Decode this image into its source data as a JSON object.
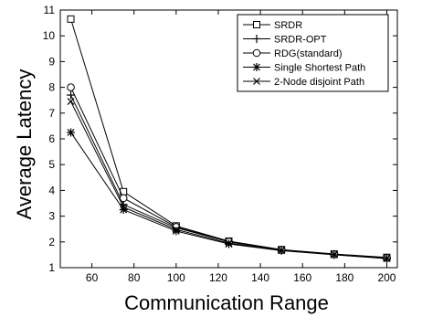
{
  "chart_data": {
    "type": "line",
    "title": "",
    "xlabel": "Communication Range",
    "ylabel": "Average Latency",
    "x": [
      50,
      75,
      100,
      125,
      150,
      175,
      200
    ],
    "xlim": [
      45,
      205
    ],
    "ylim": [
      1,
      11
    ],
    "xticks": [
      60,
      80,
      100,
      120,
      140,
      160,
      180,
      200
    ],
    "yticks": [
      1,
      2,
      3,
      4,
      5,
      6,
      7,
      8,
      9,
      10,
      11
    ],
    "grid": false,
    "legend_position": "top-right",
    "series": [
      {
        "name": "SRDR",
        "marker": "square",
        "values": [
          10.65,
          3.95,
          2.62,
          2.03,
          1.7,
          1.53,
          1.4
        ]
      },
      {
        "name": "SRDR-OPT",
        "marker": "plus",
        "values": [
          7.7,
          3.45,
          2.55,
          2.0,
          1.69,
          1.52,
          1.38
        ]
      },
      {
        "name": "RDG(standard)",
        "marker": "circle",
        "values": [
          8.0,
          3.7,
          2.58,
          2.01,
          1.69,
          1.52,
          1.38
        ]
      },
      {
        "name": "Single Shortest Path",
        "marker": "asterisk",
        "values": [
          6.25,
          3.25,
          2.42,
          1.92,
          1.66,
          1.5,
          1.35
        ]
      },
      {
        "name": "2-Node disjoint Path",
        "marker": "x",
        "values": [
          7.45,
          3.35,
          2.48,
          1.95,
          1.67,
          1.51,
          1.36
        ]
      }
    ]
  }
}
